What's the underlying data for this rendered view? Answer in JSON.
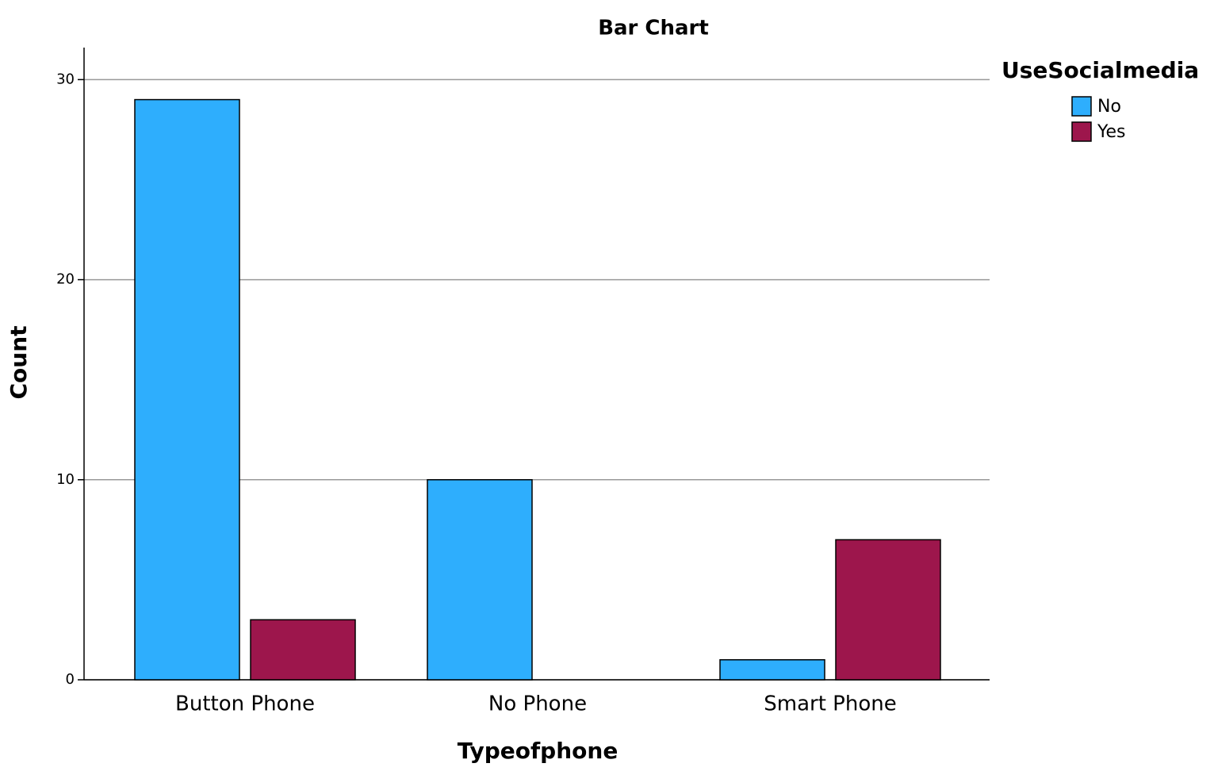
{
  "chart_data": {
    "type": "bar",
    "title": "Bar Chart",
    "x_label": "Typeofphone",
    "y_label": "Count",
    "legend_title": "UseSocialmedia",
    "categories": [
      "Button Phone",
      "No Phone",
      "Smart Phone"
    ],
    "series": [
      {
        "name": "No",
        "color": "#2eaefd",
        "values": [
          29,
          10,
          1
        ]
      },
      {
        "name": "Yes",
        "color": "#9d164c",
        "values": [
          3,
          0,
          7
        ]
      }
    ],
    "ylim": [
      0,
      31.6
    ],
    "yticks": [
      0,
      10,
      20,
      30
    ],
    "grid": true,
    "legend": "right"
  }
}
